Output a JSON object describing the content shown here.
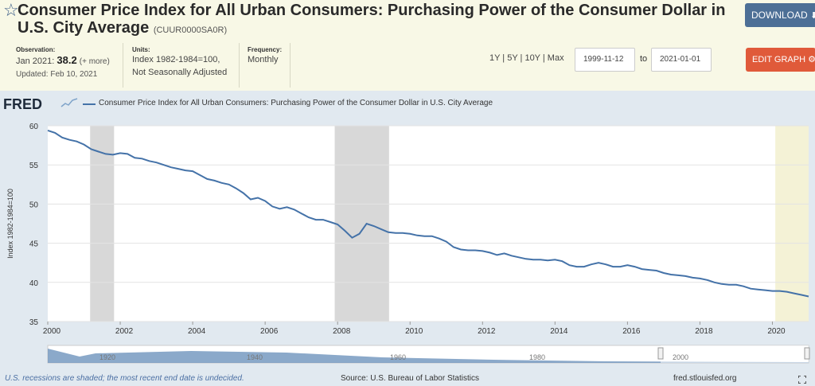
{
  "header": {
    "title": "Consumer Price Index for All Urban Consumers: Purchasing Power of the Consumer Dollar in U.S. City Average",
    "series_code": "(CUUR0000SA0R)",
    "download_label": "DOWNLOAD",
    "star_icon": "star-outline-icon",
    "download_icon": "download-icon"
  },
  "meta": {
    "observation_label": "Observation:",
    "observation_date": "Jan 2021:",
    "observation_value": "38.2",
    "observation_more": "(+ more)",
    "updated": "Updated: Feb 10, 2021",
    "units_label": "Units:",
    "units_line1": "Index 1982-1984=100,",
    "units_line2": "Not Seasonally Adjusted",
    "frequency_label": "Frequency:",
    "frequency_value": "Monthly"
  },
  "controls": {
    "range_buttons": "1Y | 5Y | 10Y | Max",
    "date_from": "1999-11-12",
    "date_to_label": "to",
    "date_to": "2021-01-01",
    "edit_label": "EDIT GRAPH",
    "edit_icon": "gear-icon"
  },
  "graph": {
    "logo": "FRED",
    "legend": "Consumer Price Index for All Urban Consumers: Purchasing Power of the Consumer Dollar in U.S. City Average",
    "recession_note": "U.S. recessions are shaded; the most recent end date is undecided.",
    "source": "Source: U.S. Bureau of Labor Statistics",
    "site": "fred.stlouisfed.org",
    "navigator_ticks": [
      "1920",
      "1940",
      "1960",
      "1980",
      "2000"
    ]
  },
  "colors": {
    "line": "#4472a8",
    "recession": "#d8d8d8",
    "undecided": "#f4f2d6",
    "background": "#e1e9f0",
    "download_button": "#4d6f96",
    "edit_button": "#e05a3a"
  },
  "chart_data": {
    "type": "line",
    "title": "",
    "xlabel": "",
    "ylabel": "Index 1982-1984=100",
    "xlim": [
      2000.0,
      2021.0
    ],
    "ylim": [
      35,
      60
    ],
    "y_ticks": [
      35,
      40,
      45,
      50,
      55,
      60
    ],
    "x_ticks": [
      "2000",
      "2002",
      "2004",
      "2006",
      "2008",
      "2010",
      "2012",
      "2014",
      "2016",
      "2018",
      "2020"
    ],
    "grid": true,
    "legend_position": "top",
    "recessions": [
      [
        2001.17,
        2001.83
      ],
      [
        2007.92,
        2009.42
      ]
    ],
    "undecided_shade": [
      2020.08,
      2021.0
    ],
    "series": [
      {
        "name": "Consumer Price Index for All Urban Consumers: Purchasing Power of the Consumer Dollar in U.S. City Average",
        "x": [
          2000.0,
          2000.2,
          2000.4,
          2000.6,
          2000.8,
          2001.0,
          2001.2,
          2001.4,
          2001.6,
          2001.8,
          2002.0,
          2002.2,
          2002.4,
          2002.6,
          2002.8,
          2003.0,
          2003.2,
          2003.4,
          2003.6,
          2003.8,
          2004.0,
          2004.2,
          2004.4,
          2004.6,
          2004.8,
          2005.0,
          2005.2,
          2005.4,
          2005.6,
          2005.8,
          2006.0,
          2006.2,
          2006.4,
          2006.6,
          2006.8,
          2007.0,
          2007.2,
          2007.4,
          2007.6,
          2007.8,
          2008.0,
          2008.2,
          2008.4,
          2008.6,
          2008.8,
          2009.0,
          2009.2,
          2009.4,
          2009.6,
          2009.8,
          2010.0,
          2010.2,
          2010.4,
          2010.6,
          2010.8,
          2011.0,
          2011.2,
          2011.4,
          2011.6,
          2011.8,
          2012.0,
          2012.2,
          2012.4,
          2012.6,
          2012.8,
          2013.0,
          2013.2,
          2013.4,
          2013.6,
          2013.8,
          2014.0,
          2014.2,
          2014.4,
          2014.6,
          2014.8,
          2015.0,
          2015.2,
          2015.4,
          2015.6,
          2015.8,
          2016.0,
          2016.2,
          2016.4,
          2016.6,
          2016.8,
          2017.0,
          2017.2,
          2017.4,
          2017.6,
          2017.8,
          2018.0,
          2018.2,
          2018.4,
          2018.6,
          2018.8,
          2019.0,
          2019.2,
          2019.4,
          2019.6,
          2019.8,
          2020.0,
          2020.2,
          2020.4,
          2020.6,
          2020.8,
          2021.0
        ],
        "values": [
          59.4,
          59.1,
          58.5,
          58.2,
          58.0,
          57.6,
          57.0,
          56.7,
          56.4,
          56.3,
          56.5,
          56.4,
          55.9,
          55.8,
          55.5,
          55.3,
          55.0,
          54.7,
          54.5,
          54.3,
          54.2,
          53.7,
          53.2,
          53.0,
          52.7,
          52.5,
          52.0,
          51.4,
          50.6,
          50.8,
          50.4,
          49.7,
          49.4,
          49.6,
          49.3,
          48.8,
          48.3,
          48.0,
          48.0,
          47.7,
          47.4,
          46.6,
          45.7,
          46.2,
          47.5,
          47.2,
          46.8,
          46.4,
          46.3,
          46.3,
          46.2,
          46.0,
          45.9,
          45.9,
          45.6,
          45.2,
          44.5,
          44.2,
          44.1,
          44.1,
          44.0,
          43.8,
          43.5,
          43.7,
          43.4,
          43.2,
          43.0,
          42.9,
          42.9,
          42.8,
          42.9,
          42.7,
          42.2,
          42.0,
          42.0,
          42.3,
          42.5,
          42.3,
          42.0,
          42.0,
          42.2,
          42.0,
          41.7,
          41.6,
          41.5,
          41.2,
          41.0,
          40.9,
          40.8,
          40.6,
          40.5,
          40.3,
          40.0,
          39.8,
          39.7,
          39.7,
          39.5,
          39.2,
          39.1,
          39.0,
          38.9,
          38.9,
          38.8,
          38.6,
          38.4,
          38.2
        ]
      }
    ]
  }
}
